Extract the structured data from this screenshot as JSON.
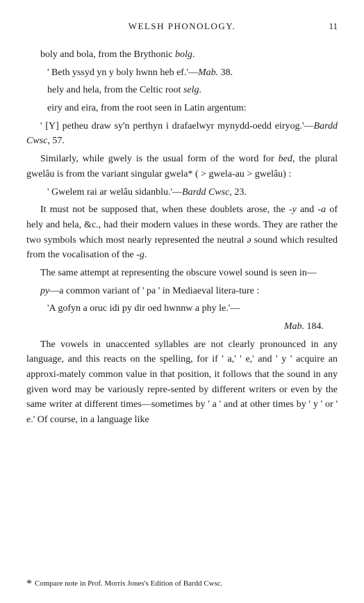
{
  "header": {
    "title": "WELSH PHONOLOGY.",
    "pageNumber": "11"
  },
  "lines": {
    "l1a": "boly and bola, from the Brythonic ",
    "l1b": "bolg",
    "l1c": ".",
    "l2a": "' Beth yssyd yn y boly hwnn heb ef.'—",
    "l2b": "Mab.",
    "l2c": " 38.",
    "l3a": "hely and hela, from the Celtic root ",
    "l3b": "selg",
    "l3c": ".",
    "l4": "eiry and eira, from the root seen in Latin argentum:",
    "l5a": "' [Y] petheu draw sy'n perthyn i drafaelwyr mynydd-oedd eiryog.'—",
    "l5b": "Bardd Cwsc,",
    "l5c": " 57.",
    "l6a": "Similarly, while gwely is the usual form of the word for ",
    "l6b": "bed",
    "l6c": ", the plural gwelâu is from the variant singular gwela* ( > gwela-au > gwelâu) :",
    "l7a": "' Gwelem rai ar welâu sidanblu.'—",
    "l7b": "Bardd Cwsc,",
    "l7c": " 23.",
    "l8a": "It must not be supposed that, when these doublets arose, the -",
    "l8b": "y",
    "l8c": " and -",
    "l8d": "a",
    "l8e": " of hely and hela, &c., had their modern values in these words. They are rather the two symbols which most nearly represented the neutral ",
    "l8f": "ə",
    "l8g": " sound which resulted from the vocalisation of the -",
    "l8h": "g",
    "l8i": ".",
    "l9": "The same attempt at representing the obscure vowel sound is seen in—",
    "l10a": "py",
    "l10b": "—a common variant of ' pa ' in Mediaeval litera-ture :",
    "l11": "'A gofyn a oruc idi py dir oed hwnnw a phy le.'—",
    "l12a": "Mab.",
    "l12b": " 184.",
    "l13": "The vowels in unaccented syllables are not clearly pronounced in any language, and this reacts on the spelling, for if ' a,' ' e,' and ' y ' acquire an approxi-mately common value in that position, it follows that the sound in any given word may be variously repre-sented by different writers or even by the same writer at different times—sometimes by ' a ' and at other times by ' y ' or ' e.' Of course, in a language like",
    "footnote": "Compare note in Prof. Morris Jones's Edition of Bardd Cwsc."
  },
  "typography": {
    "bodyFontSize": 14,
    "footnoteFontSize": 11,
    "headerFontSize": 13,
    "lineHeight": 1.55,
    "textColor": "#1a1a1a",
    "backgroundColor": "#ffffff"
  }
}
